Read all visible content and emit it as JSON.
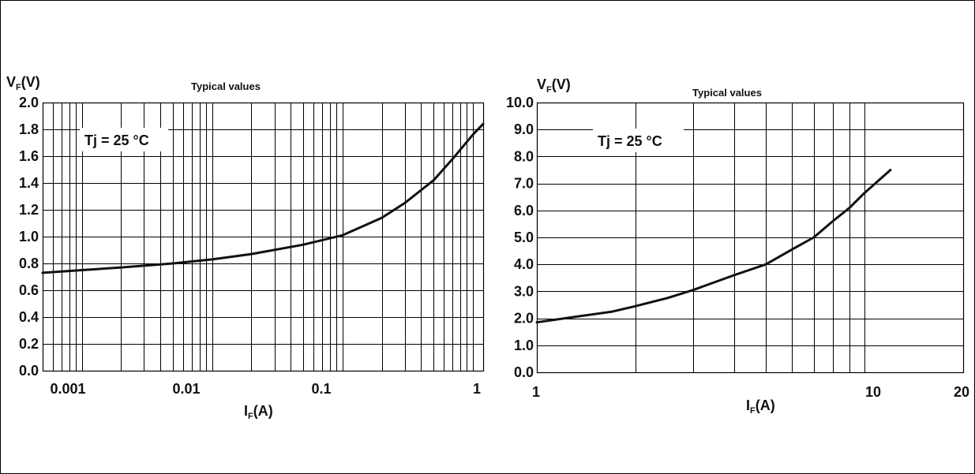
{
  "chart_data": [
    {
      "type": "line",
      "title": "Typical values",
      "ylabel_main": "V",
      "ylabel_sub": "F",
      "ylabel_unit": "(V)",
      "xlabel_main": "I",
      "xlabel_sub": "F",
      "xlabel_unit": "(A)",
      "annotation": "Tj = 25 °C",
      "x_scale": "log",
      "xlim": [
        0.0005,
        1.2
      ],
      "ylim": [
        0,
        2
      ],
      "x_tick_labels": [
        "0.001",
        "0.01",
        "0.1",
        "1"
      ],
      "y_tick_labels": [
        "0.0",
        "0.2",
        "0.4",
        "0.6",
        "0.8",
        "1.0",
        "1.2",
        "1.4",
        "1.6",
        "1.8",
        "2.0"
      ],
      "grid": true,
      "x": [
        0.0005,
        0.001,
        0.002,
        0.005,
        0.01,
        0.02,
        0.05,
        0.1,
        0.2,
        0.3,
        0.5,
        0.7,
        1.0,
        1.2
      ],
      "y": [
        0.73,
        0.75,
        0.77,
        0.8,
        0.83,
        0.87,
        0.94,
        1.01,
        1.14,
        1.25,
        1.42,
        1.58,
        1.76,
        1.84
      ]
    },
    {
      "type": "line",
      "title": "Typical values",
      "ylabel_main": "V",
      "ylabel_sub": "F",
      "ylabel_unit": "(V)",
      "xlabel_main": "I",
      "xlabel_sub": "F",
      "xlabel_unit": "(A)",
      "annotation": "Tj = 25 °C",
      "x_scale": "log",
      "xlim": [
        1,
        20
      ],
      "ylim": [
        0,
        10
      ],
      "x_tick_labels": [
        "1",
        "10",
        "20"
      ],
      "y_tick_labels": [
        "0.0",
        "1.0",
        "2.0",
        "3.0",
        "4.0",
        "5.0",
        "6.0",
        "7.0",
        "8.0",
        "9.0",
        "10.0"
      ],
      "grid": true,
      "x": [
        1,
        1.3,
        1.7,
        2,
        2.5,
        3,
        4,
        5,
        6,
        7,
        8,
        9,
        10,
        12
      ],
      "y": [
        1.85,
        2.05,
        2.25,
        2.45,
        2.75,
        3.05,
        3.6,
        4.0,
        4.55,
        5.0,
        5.6,
        6.1,
        6.65,
        7.5
      ]
    }
  ]
}
